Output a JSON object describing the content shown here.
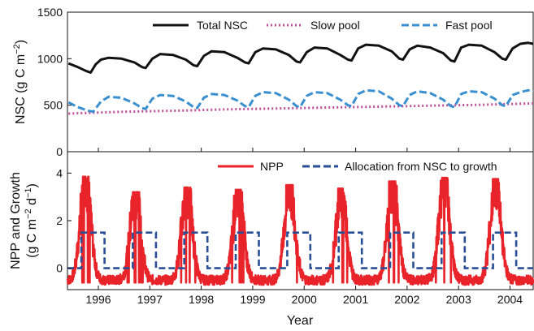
{
  "chart_data": [
    {
      "type": "line",
      "ylabel": "NSC (g C m",
      "ylabel_sup": "−2",
      "ylabel_tail": ")",
      "ylim": [
        0,
        1500
      ],
      "yticks": [
        0,
        500,
        1000,
        1500
      ],
      "x_range": [
        1995.4,
        2004.45
      ],
      "legend_placement": "top",
      "grid": false,
      "series": [
        {
          "name": "Total NSC",
          "style": "solid",
          "color": "#111111",
          "points": [
            [
              1995.42,
              950
            ],
            [
              1995.6,
              910
            ],
            [
              1995.75,
              870
            ],
            [
              1995.85,
              850
            ],
            [
              1995.95,
              940
            ],
            [
              1996.05,
              990
            ],
            [
              1996.2,
              1010
            ],
            [
              1996.45,
              1000
            ],
            [
              1996.7,
              960
            ],
            [
              1996.85,
              910
            ],
            [
              1996.92,
              900
            ],
            [
              1997.05,
              1000
            ],
            [
              1997.2,
              1050
            ],
            [
              1997.45,
              1040
            ],
            [
              1997.7,
              990
            ],
            [
              1997.85,
              930
            ],
            [
              1997.92,
              920
            ],
            [
              1998.05,
              1030
            ],
            [
              1998.2,
              1080
            ],
            [
              1998.45,
              1070
            ],
            [
              1998.7,
              1010
            ],
            [
              1998.85,
              960
            ],
            [
              1998.92,
              950
            ],
            [
              1999.05,
              1070
            ],
            [
              1999.2,
              1110
            ],
            [
              1999.45,
              1100
            ],
            [
              1999.7,
              1040
            ],
            [
              1999.85,
              970
            ],
            [
              1999.92,
              960
            ],
            [
              2000.05,
              1070
            ],
            [
              2000.2,
              1120
            ],
            [
              2000.45,
              1110
            ],
            [
              2000.7,
              1040
            ],
            [
              2000.85,
              990
            ],
            [
              2000.92,
              980
            ],
            [
              2001.05,
              1110
            ],
            [
              2001.2,
              1150
            ],
            [
              2001.45,
              1140
            ],
            [
              2001.7,
              1080
            ],
            [
              2001.85,
              1000
            ],
            [
              2001.92,
              990
            ],
            [
              2002.05,
              1100
            ],
            [
              2002.2,
              1140
            ],
            [
              2002.45,
              1120
            ],
            [
              2002.7,
              1060
            ],
            [
              2002.85,
              980
            ],
            [
              2002.92,
              970
            ],
            [
              2003.05,
              1120
            ],
            [
              2003.2,
              1150
            ],
            [
              2003.45,
              1140
            ],
            [
              2003.7,
              1070
            ],
            [
              2003.85,
              1000
            ],
            [
              2003.92,
              990
            ],
            [
              2004.05,
              1110
            ],
            [
              2004.2,
              1160
            ],
            [
              2004.35,
              1170
            ],
            [
              2004.45,
              1160
            ]
          ]
        },
        {
          "name": "Slow pool",
          "style": "dotted",
          "color": "#c0509a",
          "points": [
            [
              1995.42,
              410
            ],
            [
              1996.5,
              430
            ],
            [
              1997.5,
              440
            ],
            [
              1998.5,
              455
            ],
            [
              1999.5,
              465
            ],
            [
              2000.5,
              475
            ],
            [
              2001.5,
              485
            ],
            [
              2002.5,
              495
            ],
            [
              2003.5,
              505
            ],
            [
              2004.45,
              520
            ]
          ]
        },
        {
          "name": "Fast pool",
          "style": "dashed",
          "color": "#3a8fd0",
          "points": [
            [
              1995.42,
              530
            ],
            [
              1995.6,
              480
            ],
            [
              1995.8,
              440
            ],
            [
              1995.9,
              430
            ],
            [
              1996.05,
              540
            ],
            [
              1996.2,
              590
            ],
            [
              1996.45,
              580
            ],
            [
              1996.7,
              520
            ],
            [
              1996.85,
              470
            ],
            [
              1996.92,
              460
            ],
            [
              1997.05,
              570
            ],
            [
              1997.2,
              610
            ],
            [
              1997.45,
              600
            ],
            [
              1997.7,
              540
            ],
            [
              1997.85,
              480
            ],
            [
              1997.92,
              470
            ],
            [
              1998.05,
              580
            ],
            [
              1998.2,
              620
            ],
            [
              1998.45,
              610
            ],
            [
              1998.7,
              550
            ],
            [
              1998.85,
              490
            ],
            [
              1998.92,
              480
            ],
            [
              1999.05,
              600
            ],
            [
              1999.2,
              640
            ],
            [
              1999.45,
              630
            ],
            [
              1999.7,
              560
            ],
            [
              1999.85,
              490
            ],
            [
              1999.92,
              480
            ],
            [
              2000.05,
              600
            ],
            [
              2000.2,
              640
            ],
            [
              2000.45,
              630
            ],
            [
              2000.7,
              560
            ],
            [
              2000.85,
              500
            ],
            [
              2000.92,
              490
            ],
            [
              2001.05,
              620
            ],
            [
              2001.2,
              660
            ],
            [
              2001.45,
              650
            ],
            [
              2001.7,
              570
            ],
            [
              2001.85,
              500
            ],
            [
              2001.92,
              490
            ],
            [
              2002.05,
              610
            ],
            [
              2002.2,
              650
            ],
            [
              2002.45,
              630
            ],
            [
              2002.7,
              560
            ],
            [
              2002.85,
              490
            ],
            [
              2002.92,
              480
            ],
            [
              2003.05,
              620
            ],
            [
              2003.2,
              650
            ],
            [
              2003.45,
              640
            ],
            [
              2003.7,
              570
            ],
            [
              2003.85,
              500
            ],
            [
              2003.92,
              490
            ],
            [
              2004.05,
              610
            ],
            [
              2004.2,
              640
            ],
            [
              2004.35,
              660
            ],
            [
              2004.45,
              650
            ]
          ]
        }
      ]
    },
    {
      "type": "line",
      "xlabel": "Year",
      "ylabel_line1": "NPP and Growth",
      "ylabel_line2": "(g C m",
      "ylabel_sup1": "−2",
      "ylabel_mid": " d",
      "ylabel_sup2": "−1",
      "ylabel_tail": ")",
      "ylim": [
        -0.9,
        4.9
      ],
      "yticks": [
        0,
        2,
        4
      ],
      "x_range": [
        1995.4,
        2004.45
      ],
      "xticks": [
        "1996",
        "1997",
        "1998",
        "1999",
        "2000",
        "2001",
        "2002",
        "2003",
        "2004"
      ],
      "xtick_values": [
        1996,
        1997,
        1998,
        1999,
        2000,
        2001,
        2002,
        2003,
        2004
      ],
      "legend_placement": "top",
      "grid": false,
      "series": [
        {
          "name": "NPP",
          "style": "solid",
          "color": "#e8232a",
          "peak_years": [
            1995.75,
            1996.72,
            1997.72,
            1998.72,
            1999.72,
            2000.72,
            2001.72,
            2002.72,
            2003.72
          ],
          "peak_values": [
            3.85,
            3.2,
            3.4,
            3.3,
            3.5,
            3.35,
            3.65,
            3.8,
            3.75
          ],
          "baseline": -0.5
        },
        {
          "name": "Allocation from NSC to growth",
          "style": "dashed",
          "color": "#2a4e96",
          "on_value": 1.5,
          "off_value": 0,
          "season_start_offset": 0.33,
          "season_end_offset": 0.45,
          "seasons": [
            1996,
            1997,
            1998,
            1999,
            2000,
            2001,
            2002,
            2003,
            2004
          ]
        }
      ]
    }
  ]
}
